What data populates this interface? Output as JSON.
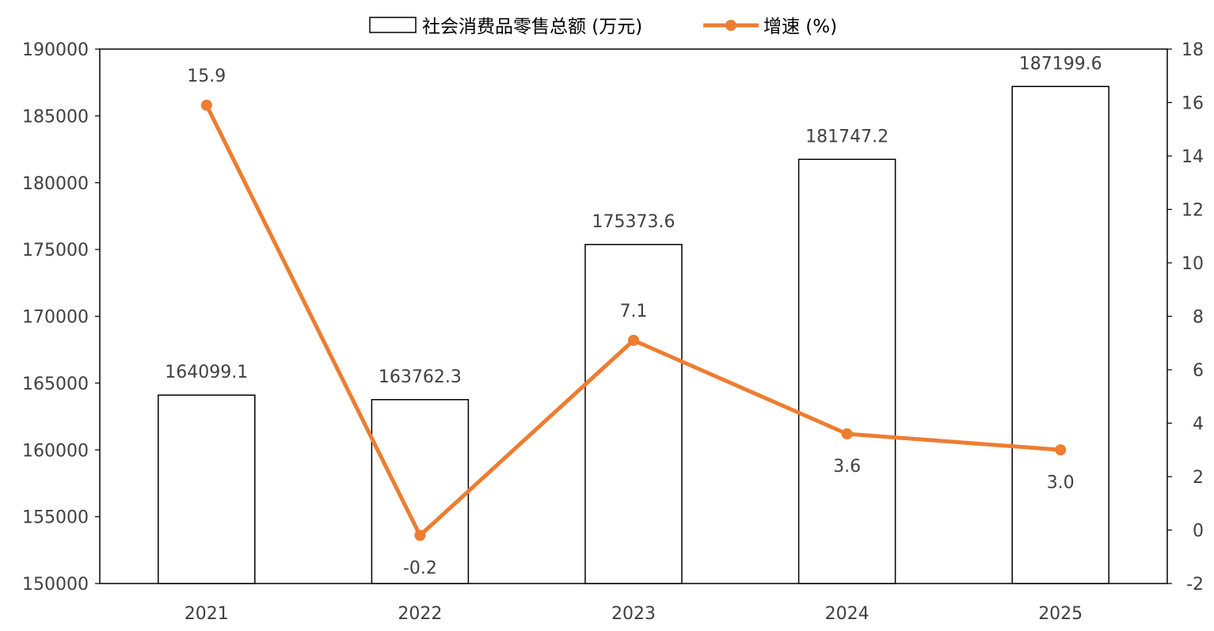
{
  "chart_data": {
    "type": "bar",
    "title": "",
    "categories": [
      "2021",
      "2022",
      "2023",
      "2024",
      "2025"
    ],
    "series": [
      {
        "name": "社会消费品零售总额 (万元)",
        "type": "bar",
        "axis": "left",
        "values": [
          164099.1,
          163762.3,
          175373.6,
          181747.2,
          187199.6
        ],
        "labels": [
          "164099.1",
          "163762.3",
          "175373.6",
          "181747.2",
          "187199.6"
        ],
        "fill": "#ffffff",
        "stroke": "#000000"
      },
      {
        "name": "增速 (%)",
        "type": "line",
        "axis": "right",
        "values": [
          15.9,
          -0.2,
          7.1,
          3.6,
          3.0
        ],
        "labels": [
          "15.9",
          "-0.2",
          "7.1",
          "3.6",
          "3.0"
        ],
        "color": "#ed7d31"
      }
    ],
    "y_left": {
      "ylim": [
        150000,
        190000
      ],
      "ticks": [
        150000,
        155000,
        160000,
        165000,
        170000,
        175000,
        180000,
        185000,
        190000
      ]
    },
    "y_right": {
      "ylim": [
        -2,
        18
      ],
      "ticks": [
        -2,
        0,
        2,
        4,
        6,
        8,
        10,
        12,
        14,
        16,
        18
      ]
    },
    "grid": false,
    "legend": "top-center"
  }
}
